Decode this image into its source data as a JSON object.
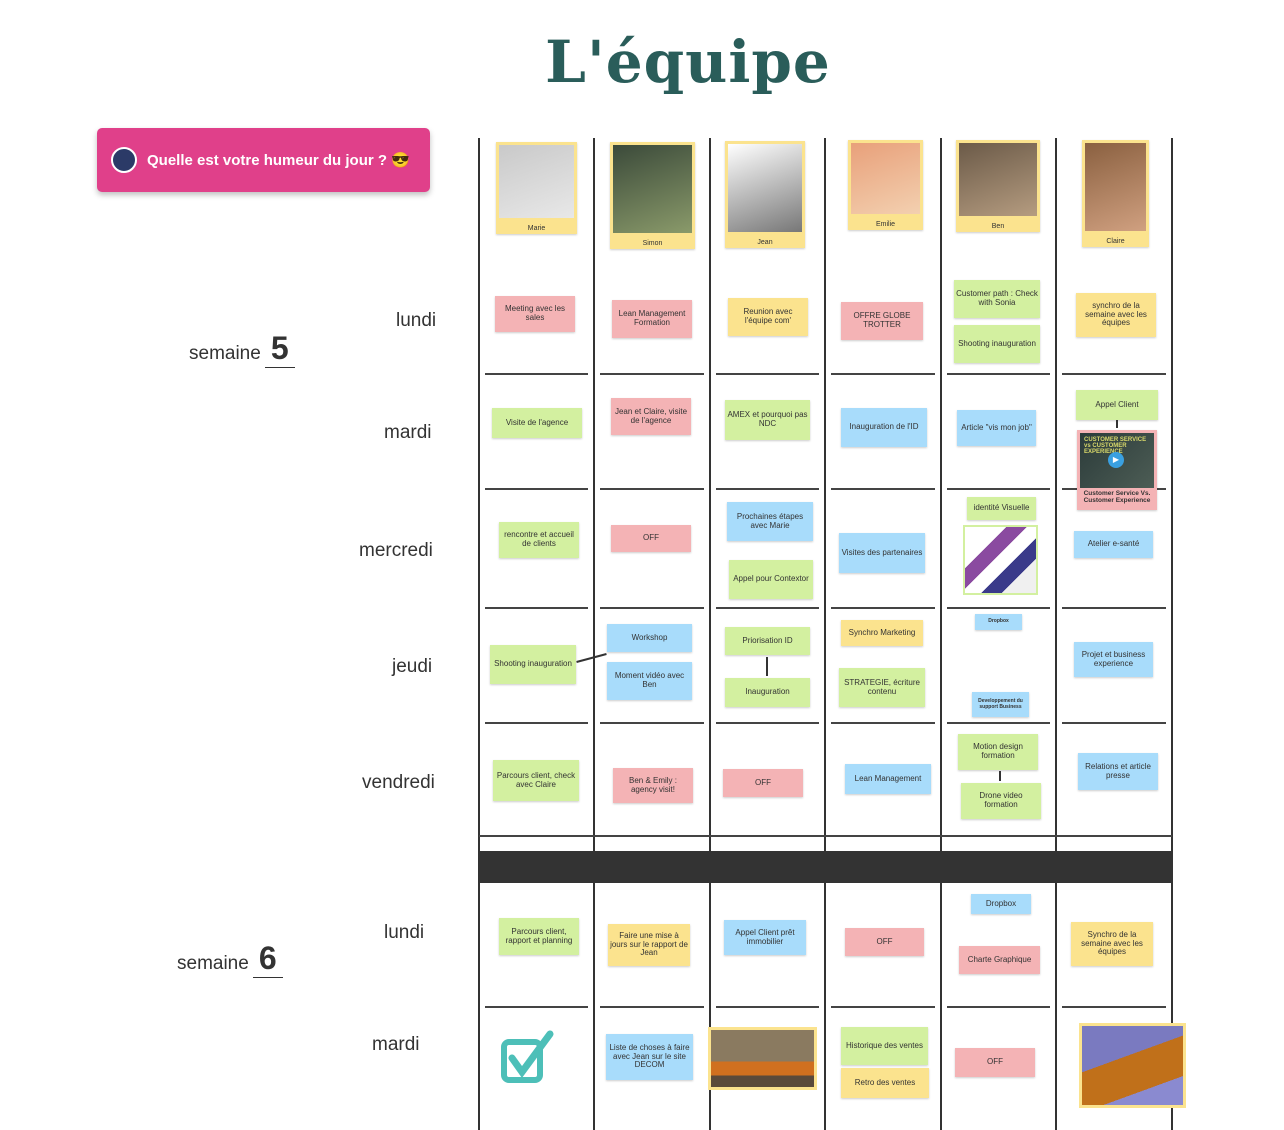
{
  "title": "L'équipe",
  "mood_button": "Quelle est votre humeur du jour ? 😎",
  "weeks": [
    {
      "label": "semaine",
      "number": "5"
    },
    {
      "label": "semaine",
      "number": "6"
    }
  ],
  "days": [
    "lundi",
    "mardi",
    "mercredi",
    "jeudi",
    "vendredi",
    "lundi",
    "mardi"
  ],
  "team": [
    "Marie",
    "Simon",
    "Jean",
    "Emilie",
    "Ben",
    "Claire"
  ],
  "colors": {
    "pink": "#f4b3b5",
    "green": "#d3f0a0",
    "yellow": "#fbe38e",
    "blue": "#a8dcfb",
    "title": "#2a5d5a",
    "mood": "#e0408a"
  },
  "notes": [
    {
      "text": "Meeting avec les sales",
      "color": "pink"
    },
    {
      "text": "Lean Management Formation",
      "color": "pink"
    },
    {
      "text": "Reunion avec l'équipe com'",
      "color": "yellow"
    },
    {
      "text": "OFFRE GLOBE TROTTER",
      "color": "pink"
    },
    {
      "text": "Customer path : Check with Sonia",
      "color": "green"
    },
    {
      "text": "Shooting inauguration",
      "color": "green"
    },
    {
      "text": "synchro de la semaine avec les équipes",
      "color": "yellow"
    },
    {
      "text": "Visite de l'agence",
      "color": "green"
    },
    {
      "text": "Jean et Claire, visite de l'agence",
      "color": "pink"
    },
    {
      "text": "AMEX et pourquoi pas NDC",
      "color": "green"
    },
    {
      "text": "Inauguration de l'ID",
      "color": "blue"
    },
    {
      "text": "Article \"vis mon job\"",
      "color": "blue"
    },
    {
      "text": "Appel Client",
      "color": "green"
    },
    {
      "text": "rencontre et accueil de clients",
      "color": "green"
    },
    {
      "text": "OFF",
      "color": "pink"
    },
    {
      "text": "Prochaines étapes avec Marie",
      "color": "blue"
    },
    {
      "text": "Appel pour Contextor",
      "color": "green"
    },
    {
      "text": "Visites des partenaires",
      "color": "blue"
    },
    {
      "text": "identité Visuelle",
      "color": "green"
    },
    {
      "text": "Atelier e-santé",
      "color": "blue"
    },
    {
      "text": "Shooting inauguration",
      "color": "green"
    },
    {
      "text": "Workshop",
      "color": "blue"
    },
    {
      "text": "Moment vidéo avec Ben",
      "color": "blue"
    },
    {
      "text": "Priorisation ID",
      "color": "green"
    },
    {
      "text": "Inauguration",
      "color": "green"
    },
    {
      "text": "Synchro Marketing",
      "color": "yellow"
    },
    {
      "text": "STRATEGIE, écriture contenu",
      "color": "green"
    },
    {
      "text": "Dropbox",
      "color": "blue"
    },
    {
      "text": "Developpement du support Business",
      "color": "blue"
    },
    {
      "text": "Projet et business experience",
      "color": "blue"
    },
    {
      "text": "Parcours client, check avec Claire",
      "color": "green"
    },
    {
      "text": "Ben & Emily : agency visit!",
      "color": "pink"
    },
    {
      "text": "OFF",
      "color": "pink"
    },
    {
      "text": "Lean Management",
      "color": "blue"
    },
    {
      "text": "Motion design formation",
      "color": "green"
    },
    {
      "text": "Drone video formation",
      "color": "green"
    },
    {
      "text": "Relations et article presse",
      "color": "blue"
    },
    {
      "text": "Parcours client, rapport et planning",
      "color": "green"
    },
    {
      "text": "Faire une mise à jours sur le rapport de Jean",
      "color": "yellow"
    },
    {
      "text": "Appel Client prêt immobilier",
      "color": "blue"
    },
    {
      "text": "OFF",
      "color": "pink"
    },
    {
      "text": "Dropbox",
      "color": "blue"
    },
    {
      "text": "Charte Graphique",
      "color": "pink"
    },
    {
      "text": "Synchro de la semaine avec les équipes",
      "color": "yellow"
    },
    {
      "text": "Liste de choses à faire avec Jean sur le site DECOM",
      "color": "blue"
    },
    {
      "text": "Historique des ventes",
      "color": "green"
    },
    {
      "text": "Retro des ventes",
      "color": "yellow"
    },
    {
      "text": "OFF",
      "color": "pink"
    }
  ],
  "video_card": {
    "caption": "Customer Service Vs. Customer Experience",
    "thumb_text": "CUSTOMER SERVICE vs CUSTOMER EXPERIENCE"
  }
}
